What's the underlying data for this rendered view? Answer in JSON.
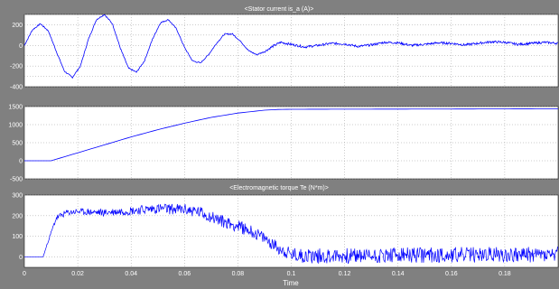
{
  "window": {
    "background_color": "#808080",
    "axes_color": "#ffffff",
    "trace_color": "#0000ff",
    "grid": "dotted"
  },
  "chart_data": [
    {
      "type": "line",
      "title": "<Stator current is_a (A)>",
      "xlabel": "",
      "ylabel": "",
      "xlim": [
        0,
        0.2
      ],
      "ylim": [
        -400,
        300
      ],
      "yticks": [
        "300",
        "200",
        "100",
        "0",
        "-100",
        "-200",
        "-300",
        "-400"
      ],
      "yticklabels_shown": [
        "200",
        "0",
        "-200",
        "-400"
      ],
      "grid": true,
      "series": [
        {
          "x": [
            0,
            0.003,
            0.006,
            0.009,
            0.012,
            0.015,
            0.018,
            0.021,
            0.024,
            0.027,
            0.03,
            0.033,
            0.036,
            0.039,
            0.042,
            0.045,
            0.048,
            0.051,
            0.054,
            0.057,
            0.06,
            0.063,
            0.066,
            0.069,
            0.072,
            0.075,
            0.078,
            0.081,
            0.084,
            0.087,
            0.09,
            0.093,
            0.096,
            0.1,
            0.105,
            0.11,
            0.115,
            0.12,
            0.125,
            0.13,
            0.135,
            0.14,
            0.145,
            0.15,
            0.155,
            0.16,
            0.165,
            0.17,
            0.175,
            0.18,
            0.185,
            0.19,
            0.195,
            0.2
          ],
          "values": [
            0,
            150,
            210,
            140,
            -60,
            -250,
            -310,
            -200,
            60,
            250,
            300,
            210,
            -30,
            -220,
            -260,
            -150,
            60,
            220,
            250,
            160,
            -20,
            -150,
            -170,
            -90,
            20,
            110,
            110,
            40,
            -50,
            -90,
            -60,
            -10,
            30,
            10,
            -15,
            0,
            20,
            15,
            -10,
            5,
            30,
            25,
            0,
            10,
            25,
            20,
            5,
            20,
            35,
            30,
            10,
            20,
            30,
            20
          ]
        }
      ]
    },
    {
      "type": "line",
      "title": "",
      "xlabel": "",
      "ylabel": "",
      "xlim": [
        0,
        0.2
      ],
      "ylim": [
        -500,
        1500
      ],
      "yticks": [
        "1500",
        "1000",
        "500",
        "0",
        "-500"
      ],
      "grid": true,
      "series": [
        {
          "x": [
            0,
            0.01,
            0.02,
            0.03,
            0.04,
            0.05,
            0.06,
            0.07,
            0.08,
            0.09,
            0.095,
            0.1,
            0.12,
            0.14,
            0.16,
            0.18,
            0.2
          ],
          "values": [
            0,
            0,
            220,
            440,
            660,
            860,
            1040,
            1200,
            1320,
            1400,
            1420,
            1425,
            1428,
            1430,
            1432,
            1435,
            1438
          ]
        }
      ]
    },
    {
      "type": "line",
      "title": "<Electromagnetic torque Te (N*m)>",
      "xlabel": "Time",
      "ylabel": "",
      "xlim": [
        0,
        0.2
      ],
      "ylim": [
        -50,
        300
      ],
      "yticks": [
        "300",
        "200",
        "100",
        "0"
      ],
      "xticks": [
        "0",
        "0.02",
        "0.04",
        "0.06",
        "0.08",
        "0.1",
        "0.12",
        "0.14",
        "0.16",
        "0.18"
      ],
      "grid": true,
      "series": [
        {
          "x": [
            0,
            0.007,
            0.009,
            0.012,
            0.016,
            0.02,
            0.03,
            0.04,
            0.05,
            0.06,
            0.065,
            0.07,
            0.075,
            0.08,
            0.085,
            0.09,
            0.095,
            0.1,
            0.11,
            0.12,
            0.14,
            0.16,
            0.18,
            0.2
          ],
          "values": [
            0,
            0,
            80,
            190,
            215,
            220,
            215,
            225,
            235,
            230,
            220,
            195,
            170,
            150,
            125,
            90,
            45,
            10,
            5,
            5,
            8,
            10,
            12,
            10
          ],
          "noise_amplitude": [
            0,
            0,
            5,
            15,
            15,
            15,
            18,
            22,
            25,
            28,
            30,
            30,
            30,
            30,
            30,
            30,
            30,
            35,
            38,
            38,
            38,
            38,
            38,
            38
          ]
        }
      ]
    }
  ]
}
